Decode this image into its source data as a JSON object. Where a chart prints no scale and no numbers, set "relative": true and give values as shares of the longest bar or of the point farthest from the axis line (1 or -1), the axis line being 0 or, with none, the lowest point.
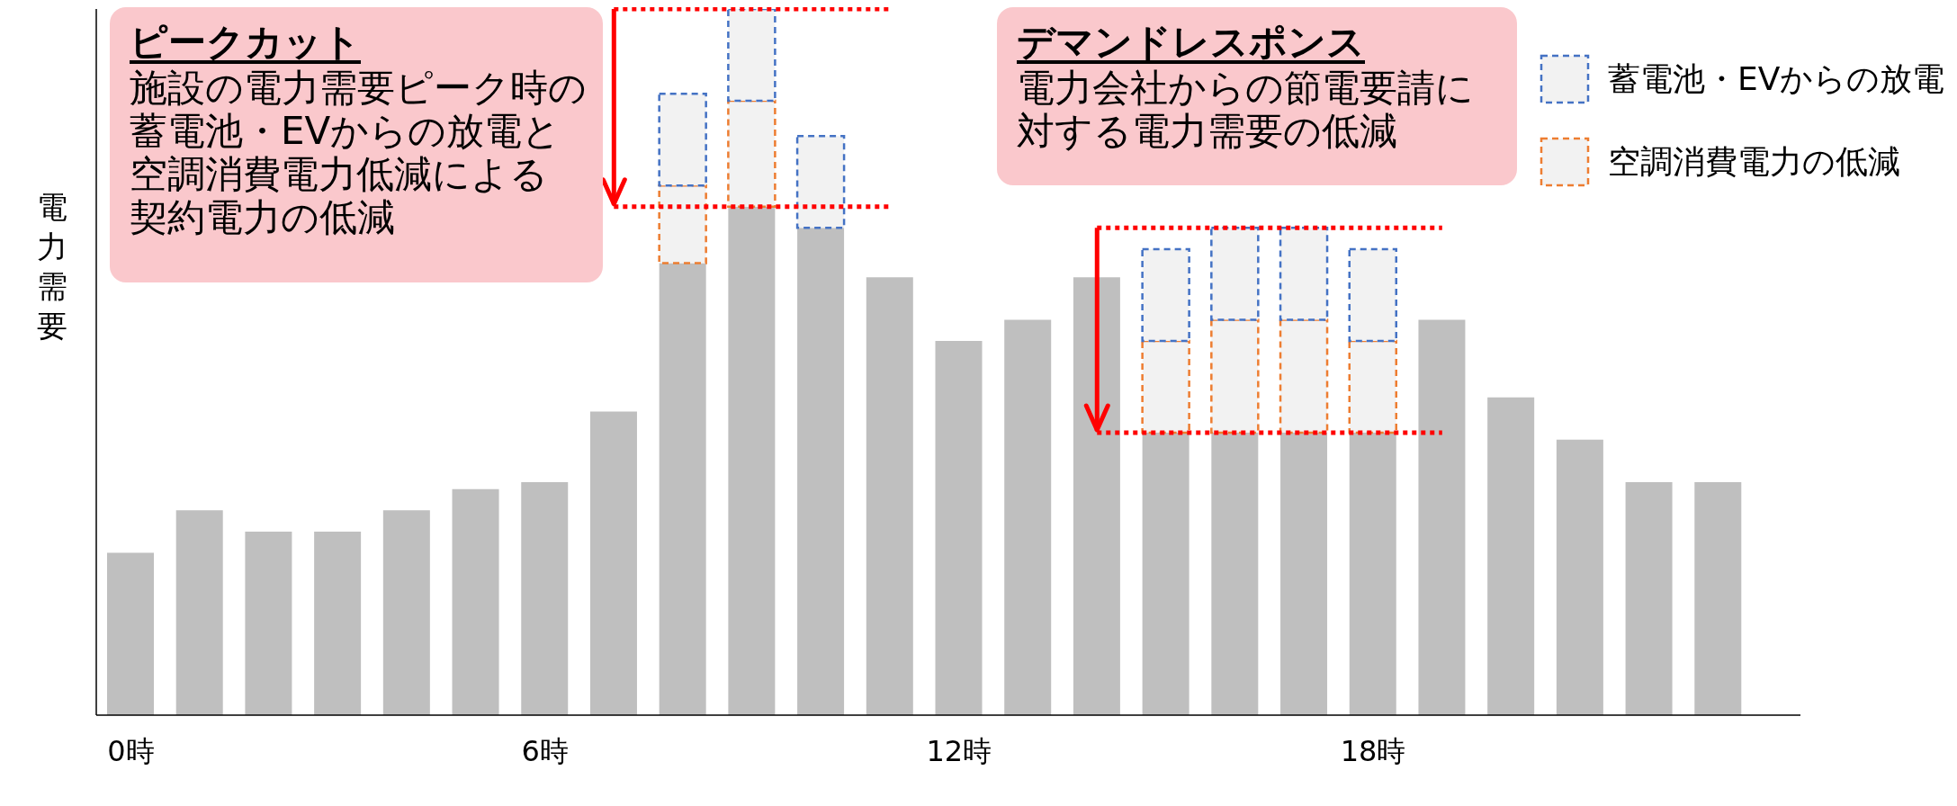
{
  "chart_data": {
    "type": "bar",
    "stacked": true,
    "relative": true,
    "ylabel": "電力需要",
    "categories": [
      "0時",
      null,
      null,
      null,
      null,
      null,
      "6時",
      null,
      null,
      null,
      null,
      null,
      "12時",
      null,
      null,
      null,
      null,
      null,
      "18時",
      null,
      null,
      null,
      null,
      null
    ],
    "series": [
      {
        "color": "#bfbfbf",
        "values": [
          0.23,
          0.29,
          0.26,
          0.26,
          0.29,
          0.32,
          0.33,
          0.43,
          0.64,
          0.72,
          0.69,
          0.62,
          0.53,
          0.56,
          0.62,
          0.4,
          0.4,
          0.4,
          0.4,
          0.56,
          0.45,
          0.39,
          0.33,
          0.33
        ]
      },
      {
        "name": "空調消費電力の低減",
        "color": "#ed7d31",
        "line_style": "dashed",
        "values": [
          null,
          null,
          null,
          null,
          null,
          null,
          null,
          null,
          0.11,
          0.15,
          null,
          null,
          null,
          null,
          null,
          0.13,
          0.16,
          0.16,
          0.13,
          null,
          null,
          null,
          null,
          null
        ]
      },
      {
        "name": "蓄電池・EVからの放電",
        "color": "#4472c4",
        "line_style": "dashed",
        "values": [
          null,
          null,
          null,
          null,
          null,
          null,
          null,
          null,
          0.13,
          0.13,
          0.13,
          null,
          null,
          null,
          null,
          0.13,
          0.13,
          0.13,
          0.13,
          null,
          null,
          null,
          null,
          null
        ]
      }
    ],
    "ref_lines": [
      {
        "axis": "y",
        "value": 1,
        "color": "#ff0000",
        "line_style": "dotted"
      },
      {
        "axis": "y",
        "value": 0.72,
        "color": "#ff0000",
        "line_style": "dotted"
      },
      {
        "axis": "y",
        "value": 0.69,
        "color": "#ff0000",
        "line_style": "dotted"
      },
      {
        "axis": "y",
        "value": 0.4,
        "color": "#ff0000",
        "line_style": "dotted"
      }
    ],
    "annotations": [
      "ピークカット",
      "施設の電力需要ピーク時の",
      "蓄電池・EVからの放電と",
      "空調消費電力低減による",
      "契約電力の低減",
      "デマンドレスポンス",
      "電力会社からの節電要請に",
      "対する電力需要の低減"
    ],
    "legend": "top right"
  }
}
